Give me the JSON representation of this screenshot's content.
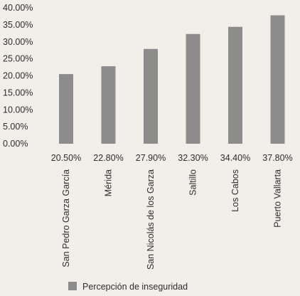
{
  "chart_data": {
    "type": "bar",
    "categories": [
      "San Pedro Garza García",
      "Mérida",
      "San Nicolás de los Garza",
      "Saltillo",
      "Los Cabos",
      "Puerto Vallarta"
    ],
    "series": [
      {
        "name": "Percepción de inseguridad",
        "values": [
          20.5,
          22.8,
          27.9,
          32.3,
          34.4,
          37.8
        ]
      }
    ],
    "data_labels": [
      "20.50%",
      "22.80%",
      "27.90%",
      "32.30%",
      "34.40%",
      "37.80%"
    ],
    "y_ticks": [
      "0.00%",
      "5.00%",
      "10.00%",
      "15.00%",
      "20.00%",
      "25.00%",
      "30.00%",
      "35.00%",
      "40.00%"
    ],
    "ylim": [
      0,
      40
    ],
    "legend_position": "bottom-left",
    "bar_color": "#8c8c8c",
    "grid": false
  }
}
